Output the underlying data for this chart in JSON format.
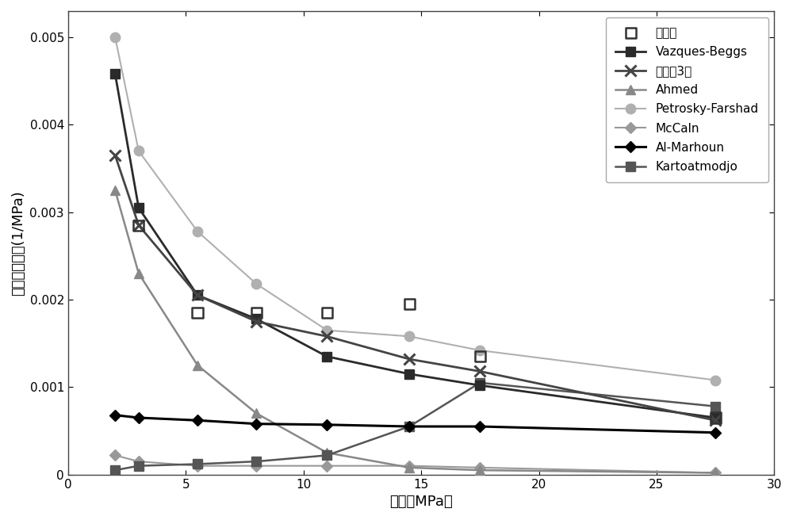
{
  "title": "",
  "xlabel": "压力（MPa）",
  "ylabel": "原油压缩系数(1/MPa)",
  "xlim": [
    0,
    30
  ],
  "ylim": [
    0,
    0.0053
  ],
  "yticks": [
    0,
    0.001,
    0.002,
    0.003,
    0.004,
    0.005
  ],
  "xticks": [
    0,
    5,
    10,
    15,
    20,
    25,
    30
  ],
  "experimental": {
    "x": [
      3.0,
      5.5,
      8.0,
      11.0,
      14.5,
      17.5,
      27.5
    ],
    "y": [
      0.00285,
      0.00185,
      0.00185,
      0.00185,
      0.00195,
      0.00135,
      0.00065
    ],
    "label": "实验値"
  },
  "vazques_beggs": {
    "x": [
      2.0,
      3.0,
      5.5,
      8.0,
      11.0,
      14.5,
      17.5,
      27.5
    ],
    "y": [
      0.00458,
      0.00305,
      0.00205,
      0.00178,
      0.00135,
      0.00115,
      0.00102,
      0.00065
    ],
    "label": "Vazques-Beggs"
  },
  "formula3": {
    "x": [
      2.0,
      3.0,
      5.5,
      8.0,
      11.0,
      14.5,
      17.5,
      27.5
    ],
    "y": [
      0.00365,
      0.00285,
      0.00205,
      0.00175,
      0.00158,
      0.00132,
      0.00118,
      0.00062
    ],
    "label": "公式（3）"
  },
  "ahmed": {
    "x": [
      2.0,
      3.0,
      5.5,
      8.0,
      11.0,
      14.5,
      17.5,
      27.5
    ],
    "y": [
      0.00325,
      0.0023,
      0.00125,
      0.0007,
      0.00025,
      8e-05,
      5e-05,
      2e-05
    ],
    "label": "Ahmed"
  },
  "petrosky_farshad": {
    "x": [
      2.0,
      3.0,
      5.5,
      8.0,
      11.0,
      14.5,
      17.5,
      27.5
    ],
    "y": [
      0.005,
      0.0037,
      0.00278,
      0.00218,
      0.00165,
      0.00158,
      0.00142,
      0.00108
    ],
    "label": "Petrosky-Farshad"
  },
  "mccaln": {
    "x": [
      2.0,
      3.0,
      5.5,
      8.0,
      11.0,
      14.5,
      17.5,
      27.5
    ],
    "y": [
      0.00022,
      0.00015,
      0.0001,
      0.0001,
      0.0001,
      0.0001,
      8e-05,
      2e-05
    ],
    "label": "McCaln"
  },
  "al_marhoun": {
    "x": [
      2.0,
      3.0,
      5.5,
      8.0,
      11.0,
      14.5,
      17.5,
      27.5
    ],
    "y": [
      0.00068,
      0.00065,
      0.00062,
      0.00058,
      0.00057,
      0.00055,
      0.00055,
      0.00048
    ],
    "label": "Al-Marhoun"
  },
  "kartoatmodjo": {
    "x": [
      2.0,
      3.0,
      5.5,
      8.0,
      11.0,
      14.5,
      17.5,
      27.5
    ],
    "y": [
      5e-05,
      0.0001,
      0.00012,
      0.00015,
      0.00022,
      0.00055,
      0.00105,
      0.00078
    ],
    "label": "Kartoatmodjo"
  },
  "bg_color": "#ffffff",
  "legend_fontsize": 11,
  "axis_fontsize": 13,
  "tick_fontsize": 11
}
